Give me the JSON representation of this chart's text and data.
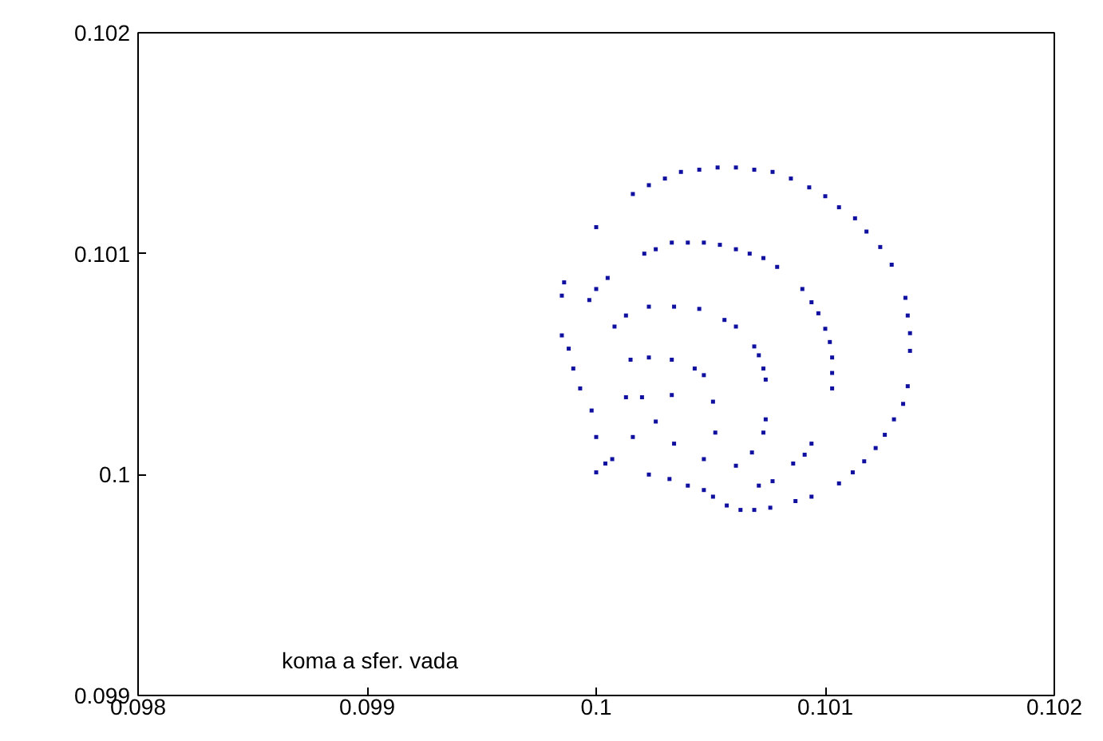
{
  "chart_data": {
    "type": "scatter",
    "marker": "square",
    "grid": false,
    "xlim": [
      0.098,
      0.102
    ],
    "xticks": [
      0.098,
      0.099,
      0.1,
      0.101,
      0.102
    ],
    "ylim": [
      0.099,
      0.102
    ],
    "yticks": [
      0.099,
      0.1,
      0.101,
      0.102
    ],
    "annotations": [
      "koma a sfer. vada"
    ],
    "series": [
      {
        "color": "#1010a0",
        "x": [
          0.1,
          0.10016,
          0.10023,
          0.1003,
          0.10037,
          0.10045,
          0.10053,
          0.10061,
          0.10069,
          0.10077,
          0.10085,
          0.10093,
          0.101,
          0.10106,
          0.10113,
          0.10118,
          0.10124,
          0.10129,
          0.10135,
          0.10136,
          0.10137,
          0.10137,
          0.10136,
          0.10134,
          0.1013,
          0.10126,
          0.10122,
          0.10117,
          0.10112,
          0.10106,
          0.10094,
          0.10087,
          0.10076,
          0.10069,
          0.10063,
          0.10057,
          0.10051,
          0.10021,
          0.10026,
          0.10033,
          0.1004,
          0.10047,
          0.10054,
          0.10061,
          0.10067,
          0.10073,
          0.10079,
          0.1009,
          0.10094,
          0.10097,
          0.101,
          0.10102,
          0.10103,
          0.10103,
          0.10103,
          0.10094,
          0.10091,
          0.10086,
          0.10077,
          0.10071,
          0.10023,
          0.10034,
          0.10045,
          0.10056,
          0.10061,
          0.10069,
          0.10071,
          0.10073,
          0.10074,
          0.10074,
          0.10073,
          0.10068,
          0.10061,
          0.10015,
          0.10023,
          0.10033,
          0.10043,
          0.10047,
          0.10051,
          0.10052,
          0.10047,
          0.10013,
          0.1002,
          0.10033,
          0.10026,
          0.10016,
          0.10034,
          0.09986,
          0.09985,
          0.10005,
          0.1,
          0.09997,
          0.10013,
          0.10008,
          0.09985,
          0.09988,
          0.0999,
          0.09993,
          0.09998,
          0.1,
          0.10004,
          0.1,
          0.10007,
          0.10023,
          0.10032,
          0.1004,
          0.10047
        ],
        "values": [
          0.10112,
          0.10127,
          0.10131,
          0.10134,
          0.10137,
          0.10138,
          0.10139,
          0.10139,
          0.10138,
          0.10137,
          0.10134,
          0.1013,
          0.10126,
          0.10121,
          0.10116,
          0.1011,
          0.10103,
          0.10095,
          0.1008,
          0.10072,
          0.10064,
          0.10056,
          0.1004,
          0.10032,
          0.10025,
          0.10018,
          0.10012,
          0.10006,
          0.10001,
          0.09996,
          0.0999,
          0.09988,
          0.09985,
          0.09984,
          0.09984,
          0.09986,
          0.0999,
          0.101,
          0.10102,
          0.10105,
          0.10105,
          0.10105,
          0.10104,
          0.10102,
          0.101,
          0.10098,
          0.10094,
          0.10084,
          0.10078,
          0.10073,
          0.10066,
          0.1006,
          0.10053,
          0.10046,
          0.10039,
          0.10014,
          0.10009,
          0.10005,
          0.09997,
          0.09995,
          0.10076,
          0.10076,
          0.10075,
          0.1007,
          0.10067,
          0.10058,
          0.10054,
          0.10048,
          0.10043,
          0.10025,
          0.10019,
          0.1001,
          0.10004,
          0.10052,
          0.10053,
          0.10052,
          0.10048,
          0.10045,
          0.10033,
          0.10019,
          0.10007,
          0.10035,
          0.10035,
          0.10036,
          0.10024,
          0.10017,
          0.10014,
          0.10087,
          0.10081,
          0.10089,
          0.10084,
          0.10079,
          0.10072,
          0.10067,
          0.10063,
          0.10057,
          0.10048,
          0.10039,
          0.10029,
          0.10017,
          0.10005,
          0.10001,
          0.10007,
          0.1,
          0.09998,
          0.09995,
          0.09993
        ]
      }
    ]
  }
}
